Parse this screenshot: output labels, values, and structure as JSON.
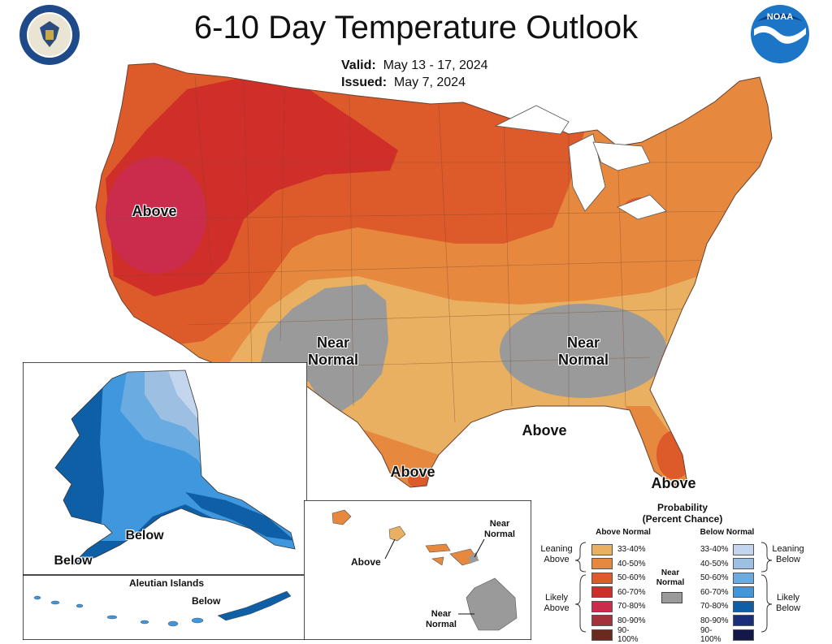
{
  "header": {
    "title": "6-10 Day Temperature Outlook",
    "valid_label": "Valid:",
    "valid_value": "May 13 - 17, 2024",
    "issued_label": "Issued:",
    "issued_value": "May 7, 2024",
    "noaa_logo_text": "NOAA"
  },
  "map_labels": {
    "west_above": "Above",
    "southwest_near_normal": "Near\nNormal",
    "southeast_near_normal": "Near\nNormal",
    "gulf_above": "Above",
    "texas_above": "Above",
    "florida_above": "Above",
    "alaska_below_1": "Below",
    "alaska_below_2": "Below",
    "aleutian_title": "Aleutian Islands",
    "aleutian_below": "Below",
    "hawaii_above": "Above",
    "hawaii_near_normal_1": "Near\nNormal",
    "hawaii_near_normal_2": "Near\nNormal"
  },
  "legend": {
    "title_line1": "Probability",
    "title_line2": "(Percent Chance)",
    "above_header": "Above Normal",
    "below_header": "Below Normal",
    "near_normal": "Near\nNormal",
    "leaning_above": "Leaning\nAbove",
    "likely_above": "Likely\nAbove",
    "leaning_below": "Leaning\nBelow",
    "likely_below": "Likely\nBelow",
    "above_items": [
      {
        "label": "33-40%",
        "color": "#e8b060"
      },
      {
        "label": "40-50%",
        "color": "#e6893f"
      },
      {
        "label": "50-60%",
        "color": "#dd5a2a"
      },
      {
        "label": "60-70%",
        "color": "#cf2e29"
      },
      {
        "label": "70-80%",
        "color": "#cc2c4c"
      },
      {
        "label": "80-90%",
        "color": "#a3323a"
      },
      {
        "label": "90-100%",
        "color": "#6b2a1e"
      }
    ],
    "below_items": [
      {
        "label": "33-40%",
        "color": "#c3d6ee"
      },
      {
        "label": "40-50%",
        "color": "#9cbfe2"
      },
      {
        "label": "50-60%",
        "color": "#6aabe2"
      },
      {
        "label": "60-70%",
        "color": "#3f98dd"
      },
      {
        "label": "70-80%",
        "color": "#0e5fa6"
      },
      {
        "label": "80-90%",
        "color": "#1a2e7a"
      },
      {
        "label": "90-100%",
        "color": "#141848"
      }
    ],
    "near_normal_color": "#9a9a9a"
  }
}
